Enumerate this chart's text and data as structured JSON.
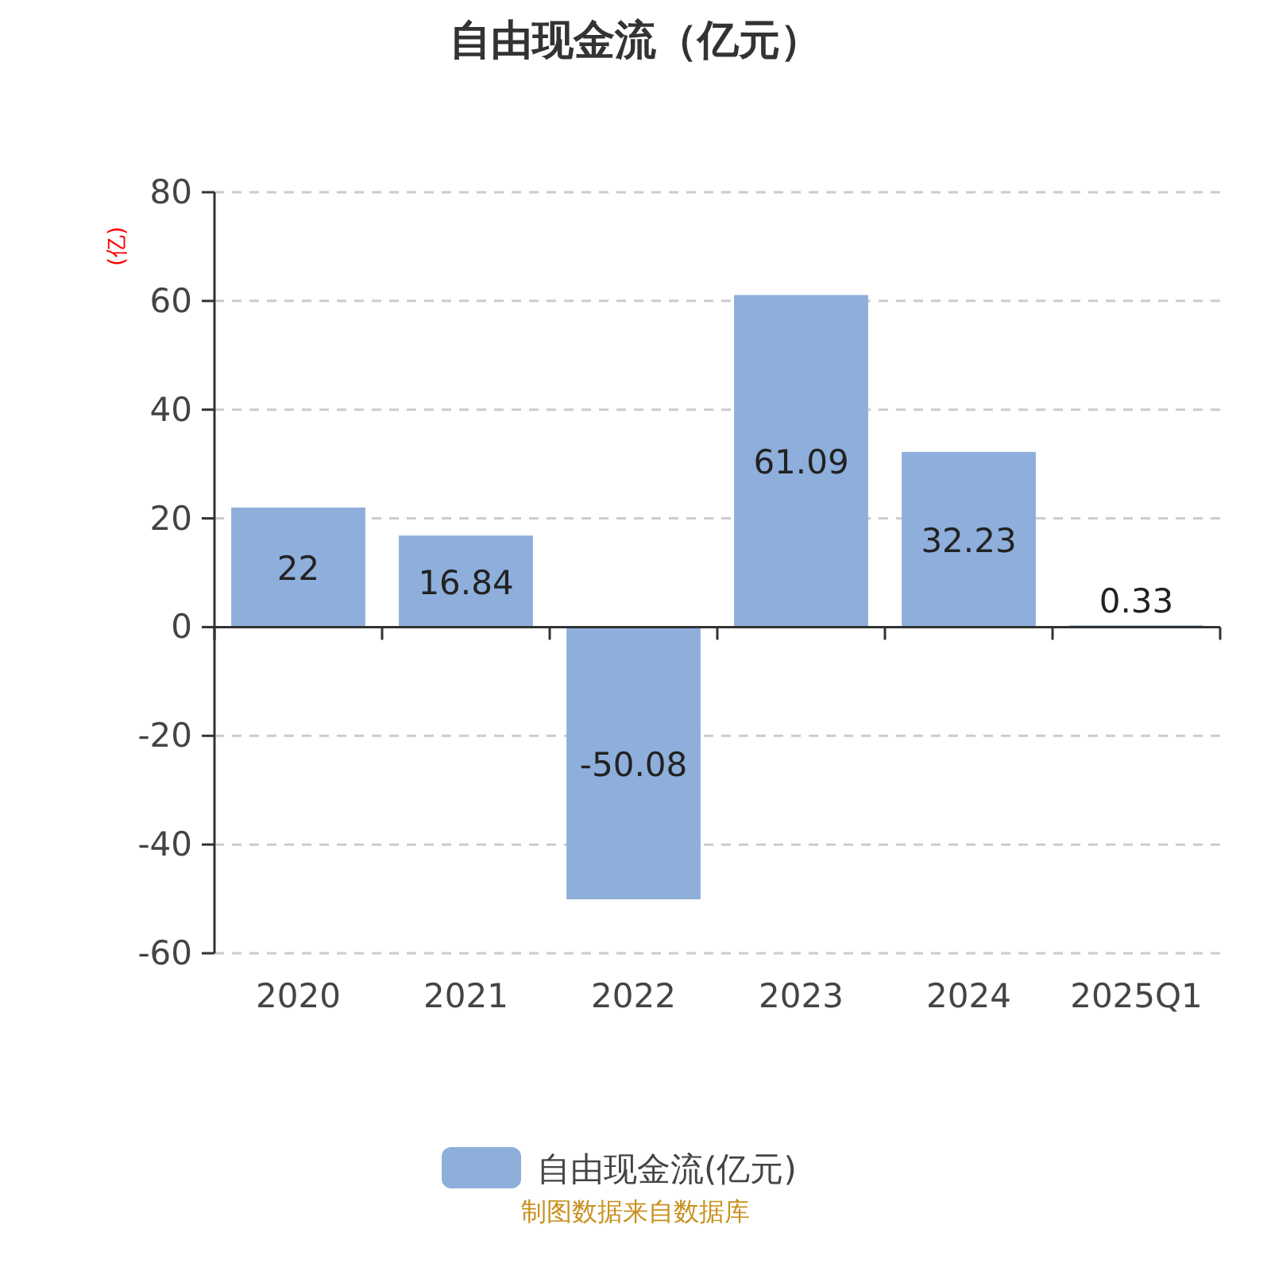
{
  "chart_data": {
    "type": "bar",
    "title": "自由现金流（亿元）",
    "ylabel": "(亿)",
    "categories": [
      "2020",
      "2021",
      "2022",
      "2023",
      "2024",
      "2025Q1"
    ],
    "series": [
      {
        "name": "自由现金流(亿元)",
        "color": "#8eaedb",
        "values": [
          22,
          16.84,
          -50.08,
          61.09,
          32.23,
          0.33
        ]
      }
    ],
    "ylim": [
      -60,
      80
    ],
    "yticks": [
      -60,
      -40,
      -20,
      0,
      20,
      40,
      60,
      80
    ],
    "grid": "y",
    "legend": "bottom",
    "data_labels": true,
    "annotations": [
      "制图数据来自数据库"
    ]
  }
}
